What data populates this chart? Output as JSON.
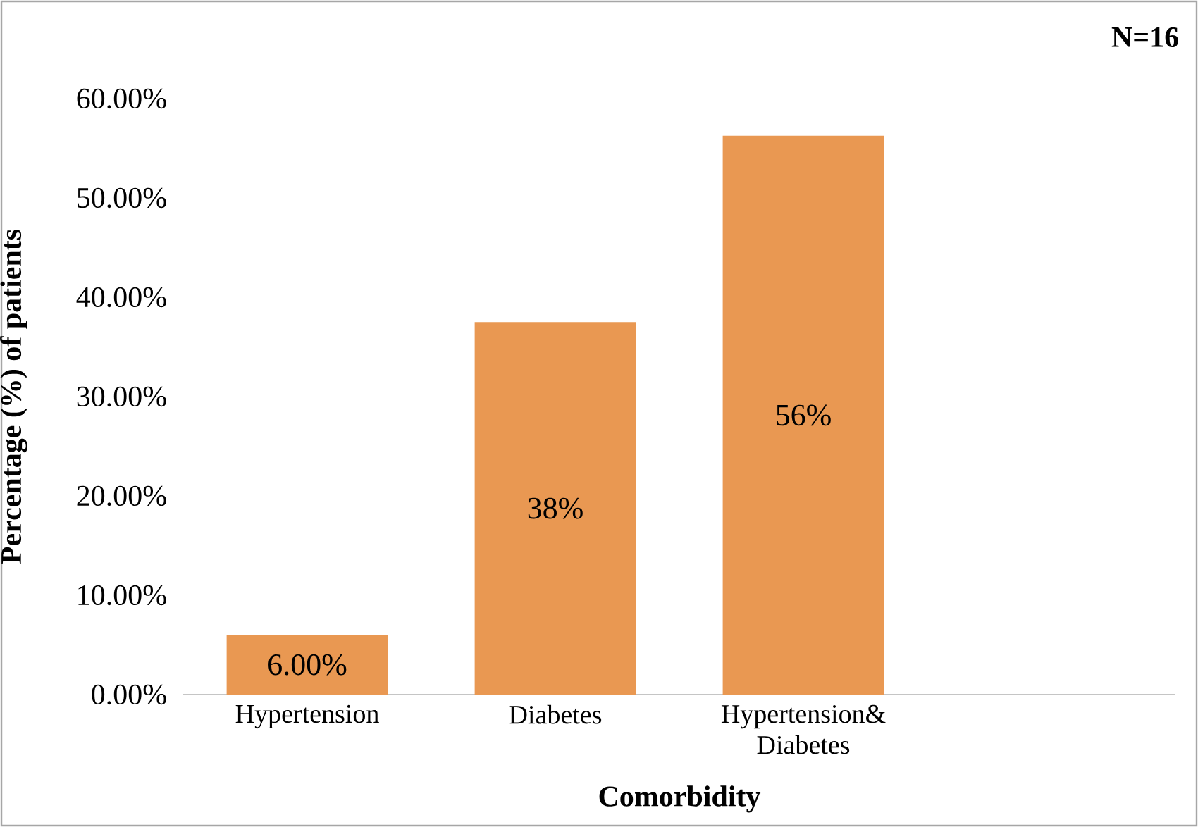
{
  "chart_data": {
    "type": "bar",
    "categories": [
      "Hypertension",
      "Diabetes",
      "Hypertension& Diabetes",
      null
    ],
    "values": [
      6.0,
      37.5,
      56.25,
      null
    ],
    "value_labels": [
      "6.00%",
      "38%",
      "56%",
      null
    ],
    "color": "#e99852",
    "xlabel": "Comorbidity",
    "ylabel": "Percentage (%) of patients",
    "annotations": [
      "N=16"
    ],
    "ylim": [
      0,
      60
    ],
    "yticks": [
      {
        "value": 0,
        "label": "0.00%"
      },
      {
        "value": 10,
        "label": "10.00%"
      },
      {
        "value": 20,
        "label": "20.00%"
      },
      {
        "value": 30,
        "label": "30.00%"
      },
      {
        "value": 40,
        "label": "40.00%"
      },
      {
        "value": 50,
        "label": "50.00%"
      },
      {
        "value": 60,
        "label": "60.00%"
      }
    ],
    "grid": false
  }
}
